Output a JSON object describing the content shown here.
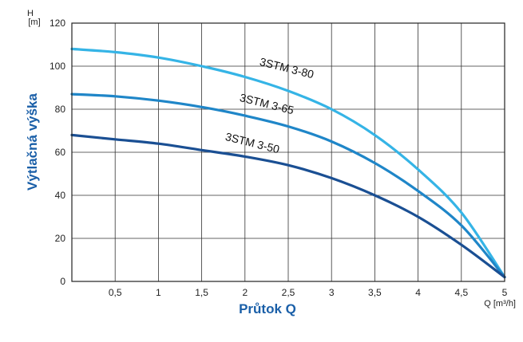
{
  "chart_data": {
    "type": "line",
    "title": "",
    "xlabel": "Průtok Q",
    "ylabel": "Výtlačná výška",
    "x_unit": "Q [m³/h]",
    "y_unit_top": "H",
    "y_unit_bottom": "[m]",
    "xlim": [
      0,
      5
    ],
    "ylim": [
      0,
      120
    ],
    "grid": true,
    "legend": "none",
    "x_ticks": [
      0.5,
      1,
      1.5,
      2,
      2.5,
      3,
      3.5,
      4,
      4.5,
      5
    ],
    "x_tick_labels": [
      "0,5",
      "1",
      "1,5",
      "2",
      "2,5",
      "3",
      "3,5",
      "4",
      "4,5",
      "5"
    ],
    "y_ticks": [
      0,
      20,
      40,
      60,
      80,
      100,
      120
    ],
    "y_tick_labels": [
      "0",
      "20",
      "40",
      "60",
      "80",
      "100",
      "120"
    ],
    "series": [
      {
        "name": "3STM 3-80",
        "color": "#35b4e6",
        "x": [
          0,
          0.5,
          1,
          1.5,
          2,
          2.5,
          3,
          3.5,
          4,
          4.5,
          5
        ],
        "y": [
          108,
          106.5,
          104,
          100,
          95,
          88.5,
          80,
          68,
          52,
          32,
          2
        ]
      },
      {
        "name": "3STM 3-65",
        "color": "#1f86c8",
        "x": [
          0,
          0.5,
          1,
          1.5,
          2,
          2.5,
          3,
          3.5,
          4,
          4.5,
          5
        ],
        "y": [
          87,
          86,
          84,
          81,
          77,
          72,
          65,
          55,
          42,
          26,
          2
        ]
      },
      {
        "name": "3STM 3-50",
        "color": "#1a4f93",
        "x": [
          0,
          0.5,
          1,
          1.5,
          2,
          2.5,
          3,
          3.5,
          4,
          4.5,
          5
        ],
        "y": [
          68,
          66,
          64,
          61,
          58,
          54,
          48,
          40,
          30,
          17,
          2
        ]
      }
    ]
  }
}
